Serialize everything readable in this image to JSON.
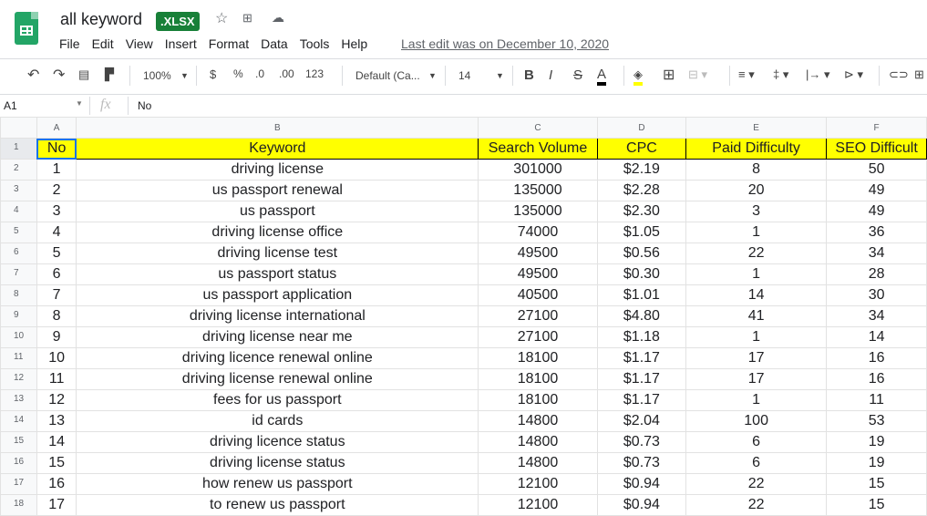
{
  "app": {
    "title": "all keyword",
    "badge": ".XLSX",
    "last_edit": "Last edit was on December 10, 2020"
  },
  "menu": [
    "File",
    "Edit",
    "View",
    "Insert",
    "Format",
    "Data",
    "Tools",
    "Help"
  ],
  "toolbar": {
    "zoom": "100%",
    "currency": "$",
    "percent": "%",
    "dec_less": ".0",
    "dec_more": ".00",
    "format": "123",
    "font": "Default (Ca...",
    "font_size": "14",
    "bold": "B",
    "italic": "I",
    "strike": "S",
    "text_color": "A",
    "fill_color": "#ffff00"
  },
  "formula": {
    "cell_ref": "A1",
    "fx": "fx",
    "value": "No"
  },
  "columns": [
    "A",
    "B",
    "C",
    "D",
    "E",
    "F"
  ],
  "headers": [
    "No",
    "Keyword",
    "Search Volume",
    "CPC",
    "Paid Difficulty",
    "SEO Difficult"
  ],
  "rows": [
    [
      "1",
      "driving license",
      "301000",
      "$2.19",
      "8",
      "50"
    ],
    [
      "2",
      "us passport renewal",
      "135000",
      "$2.28",
      "20",
      "49"
    ],
    [
      "3",
      "us passport",
      "135000",
      "$2.30",
      "3",
      "49"
    ],
    [
      "4",
      "driving license office",
      "74000",
      "$1.05",
      "1",
      "36"
    ],
    [
      "5",
      "driving license test",
      "49500",
      "$0.56",
      "22",
      "34"
    ],
    [
      "6",
      "us passport status",
      "49500",
      "$0.30",
      "1",
      "28"
    ],
    [
      "7",
      "us passport application",
      "40500",
      "$1.01",
      "14",
      "30"
    ],
    [
      "8",
      "driving license international",
      "27100",
      "$4.80",
      "41",
      "34"
    ],
    [
      "9",
      "driving license near me",
      "27100",
      "$1.18",
      "1",
      "14"
    ],
    [
      "10",
      "driving licence renewal online",
      "18100",
      "$1.17",
      "17",
      "16"
    ],
    [
      "11",
      "driving license renewal online",
      "18100",
      "$1.17",
      "17",
      "16"
    ],
    [
      "12",
      "fees for us passport",
      "18100",
      "$1.17",
      "1",
      "11"
    ],
    [
      "13",
      "id cards",
      "14800",
      "$2.04",
      "100",
      "53"
    ],
    [
      "14",
      "driving licence status",
      "14800",
      "$0.73",
      "6",
      "19"
    ],
    [
      "15",
      "driving license status",
      "14800",
      "$0.73",
      "6",
      "19"
    ],
    [
      "16",
      "how renew us passport",
      "12100",
      "$0.94",
      "22",
      "15"
    ],
    [
      "17",
      "to renew us passport",
      "12100",
      "$0.94",
      "22",
      "15"
    ]
  ]
}
